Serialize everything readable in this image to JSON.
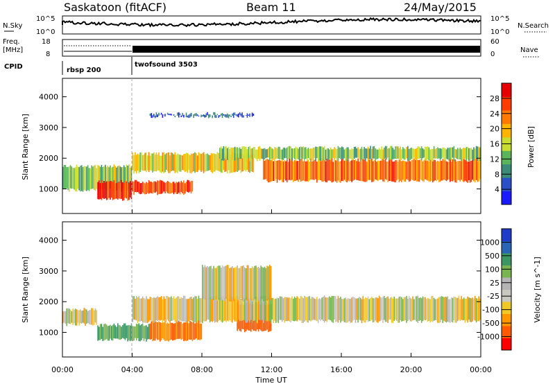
{
  "header": {
    "station": "Saskatoon (fitACF)",
    "beam": "Beam 11",
    "date": "24/May/2015"
  },
  "noise_panel": {
    "left_label": "N.Sky",
    "right_label": "N.Search",
    "left_ticks": [
      "10^5",
      "10^0"
    ],
    "right_ticks": [
      "10^5",
      "10^0"
    ]
  },
  "freq_panel": {
    "left_label_1": "Freq.",
    "left_label_2": "[MHz]",
    "left_ticks": [
      "18",
      "8"
    ],
    "right_label": "Nave",
    "right_ticks": [
      "60",
      "0"
    ]
  },
  "cpid_panel": {
    "label": "CPID",
    "modes": [
      {
        "name": "rbsp 200",
        "start_hour": 0,
        "end_hour": 4
      },
      {
        "name": "twofsound 3503",
        "start_hour": 4,
        "end_hour": 24
      }
    ]
  },
  "colors": {
    "power_scale": [
      "#1a1aff",
      "#2a50c8",
      "#3c8a78",
      "#5ab45a",
      "#c8dc32",
      "#ffb400",
      "#ff7800",
      "#ff3c00",
      "#e60000"
    ],
    "velocity_scale": [
      "#ff0000",
      "#ff5a00",
      "#ff9600",
      "#f0c828",
      "#c8c8c0",
      "#b4b4b4",
      "#78b450",
      "#3c9664",
      "#2a64b4",
      "#1e3cc8"
    ]
  },
  "chart_data": [
    {
      "type": "heatmap",
      "name": "power",
      "ylabel": "Slant Range [km]",
      "xlabel": "",
      "x_ticks": [
        "00:00",
        "04:00",
        "08:00",
        "12:00",
        "16:00",
        "20:00",
        "00:00"
      ],
      "y_ticks": [
        "1000",
        "2000",
        "3000",
        "4000"
      ],
      "xlim": [
        0,
        24
      ],
      "ylim": [
        200,
        4600
      ],
      "colorbar_label": "Power [dB]",
      "colorbar_ticks": [
        "4",
        "8",
        "12",
        "16",
        "20",
        "24",
        "28"
      ],
      "colorbar_range": [
        0,
        32
      ],
      "regions": [
        {
          "x": [
            0,
            4
          ],
          "y": [
            900,
            1800
          ],
          "value": 14
        },
        {
          "x": [
            2,
            4
          ],
          "y": [
            600,
            1300
          ],
          "value": 28
        },
        {
          "x": [
            4,
            7.5
          ],
          "y": [
            800,
            1300
          ],
          "value": 26
        },
        {
          "x": [
            4,
            11
          ],
          "y": [
            1500,
            2200
          ],
          "value": 18
        },
        {
          "x": [
            11.5,
            24
          ],
          "y": [
            1200,
            2000
          ],
          "value": 24
        },
        {
          "x": [
            9,
            24
          ],
          "y": [
            1900,
            2400
          ],
          "value": 14
        },
        {
          "x": [
            5,
            11
          ],
          "y": [
            3300,
            3500
          ],
          "value": 6
        }
      ]
    },
    {
      "type": "heatmap",
      "name": "velocity",
      "ylabel": "Slant Range [km]",
      "xlabel": "Time UT",
      "x_ticks": [
        "00:00",
        "04:00",
        "08:00",
        "12:00",
        "16:00",
        "20:00",
        "00:00"
      ],
      "y_ticks": [
        "1000",
        "2000",
        "3000",
        "4000"
      ],
      "xlim": [
        0,
        24
      ],
      "ylim": [
        200,
        4600
      ],
      "colorbar_label": "Velocity [m s^-1]",
      "colorbar_ticks": [
        "1000",
        "500",
        "100",
        "25",
        "-25",
        "-100",
        "-500",
        "-1000"
      ],
      "regions": [
        {
          "x": [
            0,
            2
          ],
          "y": [
            1200,
            1800
          ],
          "value": 0
        },
        {
          "x": [
            2,
            5
          ],
          "y": [
            700,
            1300
          ],
          "value": 300
        },
        {
          "x": [
            5,
            8
          ],
          "y": [
            700,
            1400
          ],
          "value": -300
        },
        {
          "x": [
            10,
            12
          ],
          "y": [
            1000,
            2000
          ],
          "value": -500
        },
        {
          "x": [
            4,
            24
          ],
          "y": [
            1300,
            2200
          ],
          "value": 0
        },
        {
          "x": [
            8,
            12
          ],
          "y": [
            2000,
            3200
          ],
          "value": 0
        }
      ]
    }
  ]
}
